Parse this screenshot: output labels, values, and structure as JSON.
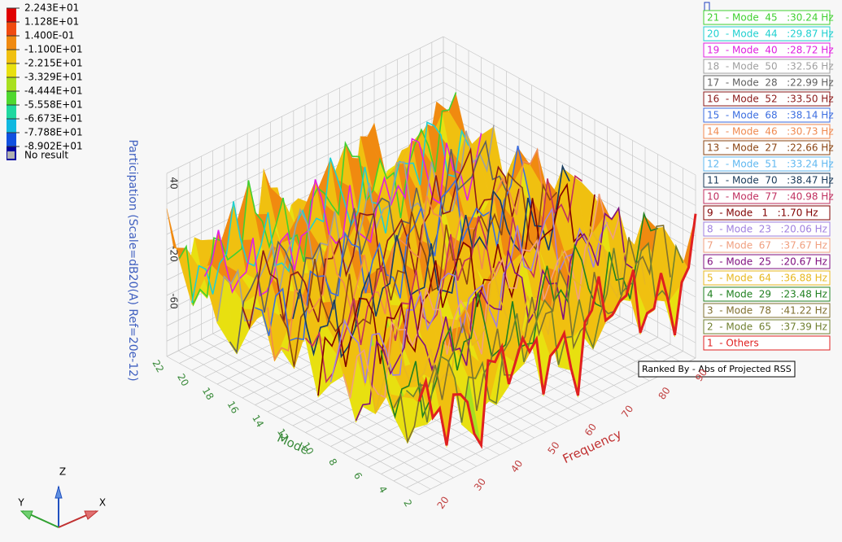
{
  "contour_legend": {
    "labels": [
      "2.243E+01",
      "1.128E+01",
      "1.400E-01",
      "-1.100E+01",
      "-2.215E+01",
      "-3.329E+01",
      "-4.444E+01",
      "-5.558E+01",
      "-6.673E+01",
      "-7.788E+01",
      "-8.902E+01"
    ],
    "colors": [
      "#e00000",
      "#f04a10",
      "#f08a10",
      "#f0c010",
      "#e8e010",
      "#a8e020",
      "#50d830",
      "#20d8a0",
      "#10b8e0",
      "#1050e0",
      "#0000a0"
    ],
    "no_result": "No result"
  },
  "axes": {
    "z_title": "Participation (Scale=dB20(A) Ref=20e-12)",
    "z_ticks": [
      "40",
      "-20",
      "-60"
    ],
    "x_title": "Frequency",
    "x_ticks": [
      "20",
      "30",
      "40",
      "50",
      "60",
      "70",
      "80",
      "90"
    ],
    "y_title": "Mode",
    "y_ticks": [
      "2",
      "4",
      "6",
      "8",
      "10",
      "12",
      "14",
      "16",
      "18",
      "20",
      "22"
    ]
  },
  "mode_legend": [
    {
      "label": "21  - Mode  45   :30.24 Hz",
      "color": "#40d030"
    },
    {
      "label": "20  - Mode  44   :29.87 Hz",
      "color": "#20d0d0"
    },
    {
      "label": "19  - Mode  40   :28.72 Hz",
      "color": "#e020e0"
    },
    {
      "label": "18  - Mode  50   :32.56 Hz",
      "color": "#a0a0a0"
    },
    {
      "label": "17  - Mode  28   :22.99 Hz",
      "color": "#606060"
    },
    {
      "label": "16  - Mode  52   :33.50 Hz",
      "color": "#8b1a1a"
    },
    {
      "label": "15  - Mode  68   :38.14 Hz",
      "color": "#3c6ee0"
    },
    {
      "label": "14  - Mode  46   :30.73 Hz",
      "color": "#f08a50"
    },
    {
      "label": "13  - Mode  27   :22.66 Hz",
      "color": "#8b4513"
    },
    {
      "label": "12  - Mode  51   :33.24 Hz",
      "color": "#60b8f0"
    },
    {
      "label": "11  - Mode  70   :38.47 Hz",
      "color": "#1a3a5a"
    },
    {
      "label": "10  - Mode  77   :40.98 Hz",
      "color": "#c03060"
    },
    {
      "label": "9  - Mode   1   :1.70 Hz",
      "color": "#800000"
    },
    {
      "label": "8  - Mode  23   :20.06 Hz",
      "color": "#a080e0"
    },
    {
      "label": "7  - Mode  67   :37.67 Hz",
      "color": "#f0a080"
    },
    {
      "label": "6  - Mode  25   :20.67 Hz",
      "color": "#801080"
    },
    {
      "label": "5  - Mode  64   :36.88 Hz",
      "color": "#e8b820"
    },
    {
      "label": "4  - Mode  29   :23.48 Hz",
      "color": "#208020"
    },
    {
      "label": "3  - Mode  78   :41.22 Hz",
      "color": "#807030"
    },
    {
      "label": "2  - Mode  65   :37.39 Hz",
      "color": "#708030"
    },
    {
      "label": "1  - Others",
      "color": "#e02020"
    }
  ],
  "ranked_by": "Ranked By - Abs of Projected RSS",
  "triad": {
    "x": "X",
    "y": "Y",
    "z": "Z"
  }
}
